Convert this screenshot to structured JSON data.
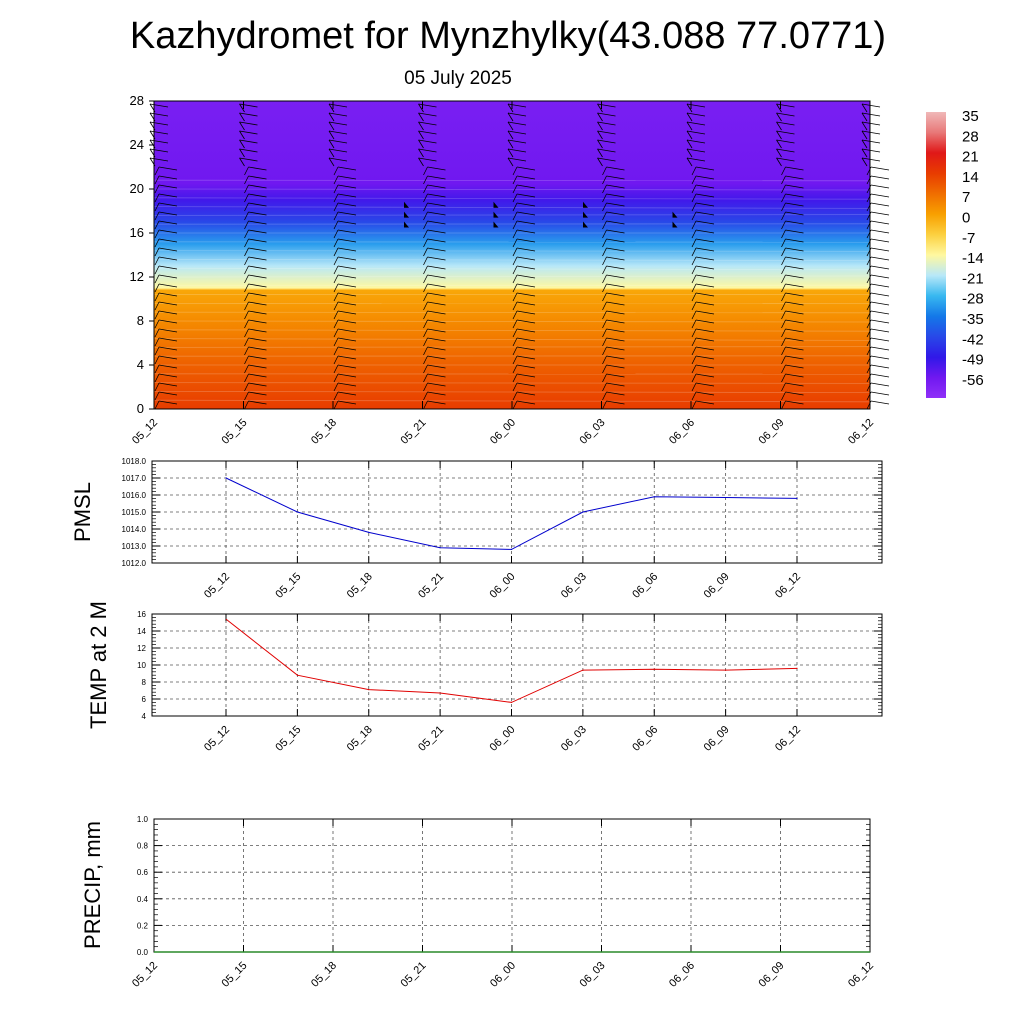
{
  "title": "Kazhydromet for Mynzhylky(43.088 77.0771)",
  "date": "05 July 2025",
  "chart_data": [
    {
      "type": "heatmap",
      "name": "vertical cross-section",
      "yticks": [
        "0",
        "4",
        "8",
        "12",
        "16",
        "20",
        "24",
        "28"
      ],
      "ylim": [
        0,
        28
      ],
      "xticks": [
        "05_12",
        "05_15",
        "05_18",
        "05_21",
        "06_00",
        "06_03",
        "06_06",
        "06_09",
        "06_12"
      ],
      "colorbar": {
        "labels": [
          "35",
          "28",
          "21",
          "14",
          "7",
          "0",
          "-7",
          "-14",
          "-21",
          "-28",
          "-35",
          "-42",
          "-49",
          "-56"
        ],
        "colors": [
          "#f0b8b8",
          "#e87878",
          "#e01818",
          "#e83c00",
          "#f06e00",
          "#f8a000",
          "#fcd040",
          "#fff8a0",
          "#b8e8f8",
          "#38b8f0",
          "#1478e8",
          "#2848e8",
          "#3018e8",
          "#7018f0",
          "#9030f8"
        ]
      },
      "layers": [
        {
          "level": 0,
          "value": 14
        },
        {
          "level": 4,
          "value": 9
        },
        {
          "level": 8,
          "value": 3
        },
        {
          "level": 10.8,
          "value": -1
        },
        {
          "level": 11,
          "value": -14
        },
        {
          "level": 13,
          "value": -21
        },
        {
          "level": 15,
          "value": -31
        },
        {
          "level": 17,
          "value": -42
        },
        {
          "level": 19,
          "value": -51
        },
        {
          "level": 20.5,
          "value": -56
        },
        {
          "level": 28,
          "value": -58
        }
      ]
    },
    {
      "type": "line",
      "ylabel": "PMSL",
      "yticks": [
        "1012.0",
        "1013.0",
        "1014.0",
        "1015.0",
        "1016.0",
        "1017.0",
        "1018.0"
      ],
      "ylim": [
        1012,
        1018
      ],
      "xticks": [
        "05_12",
        "05_15",
        "05_18",
        "05_21",
        "06_00",
        "06_03",
        "06_06",
        "06_09",
        "06_12"
      ],
      "values": [
        1017.0,
        1015.0,
        1013.8,
        1012.9,
        1012.8,
        1015.0,
        1015.9,
        1015.85,
        1015.8
      ],
      "color": "#0000cc"
    },
    {
      "type": "line",
      "ylabel": "TEMP at 2 M",
      "yticks": [
        "4",
        "6",
        "8",
        "10",
        "12",
        "14",
        "16"
      ],
      "ylim": [
        4,
        16
      ],
      "xticks": [
        "05_12",
        "05_15",
        "05_18",
        "05_21",
        "06_00",
        "06_03",
        "06_06",
        "06_09",
        "06_12"
      ],
      "values": [
        15.4,
        8.8,
        7.1,
        6.7,
        5.6,
        9.4,
        9.5,
        9.4,
        9.6
      ],
      "color": "#e00000"
    },
    {
      "type": "line",
      "ylabel": "PRECIP, mm",
      "yticks": [
        "0.0",
        "0.2",
        "0.4",
        "0.6",
        "0.8",
        "1.0"
      ],
      "ylim": [
        0,
        1
      ],
      "xticks": [
        "05_12",
        "05_15",
        "05_18",
        "05_21",
        "06_00",
        "06_03",
        "06_06",
        "06_09",
        "06_12"
      ],
      "values": [
        0,
        0,
        0,
        0,
        0,
        0,
        0,
        0,
        0
      ],
      "color": "#2a8a2a"
    }
  ]
}
